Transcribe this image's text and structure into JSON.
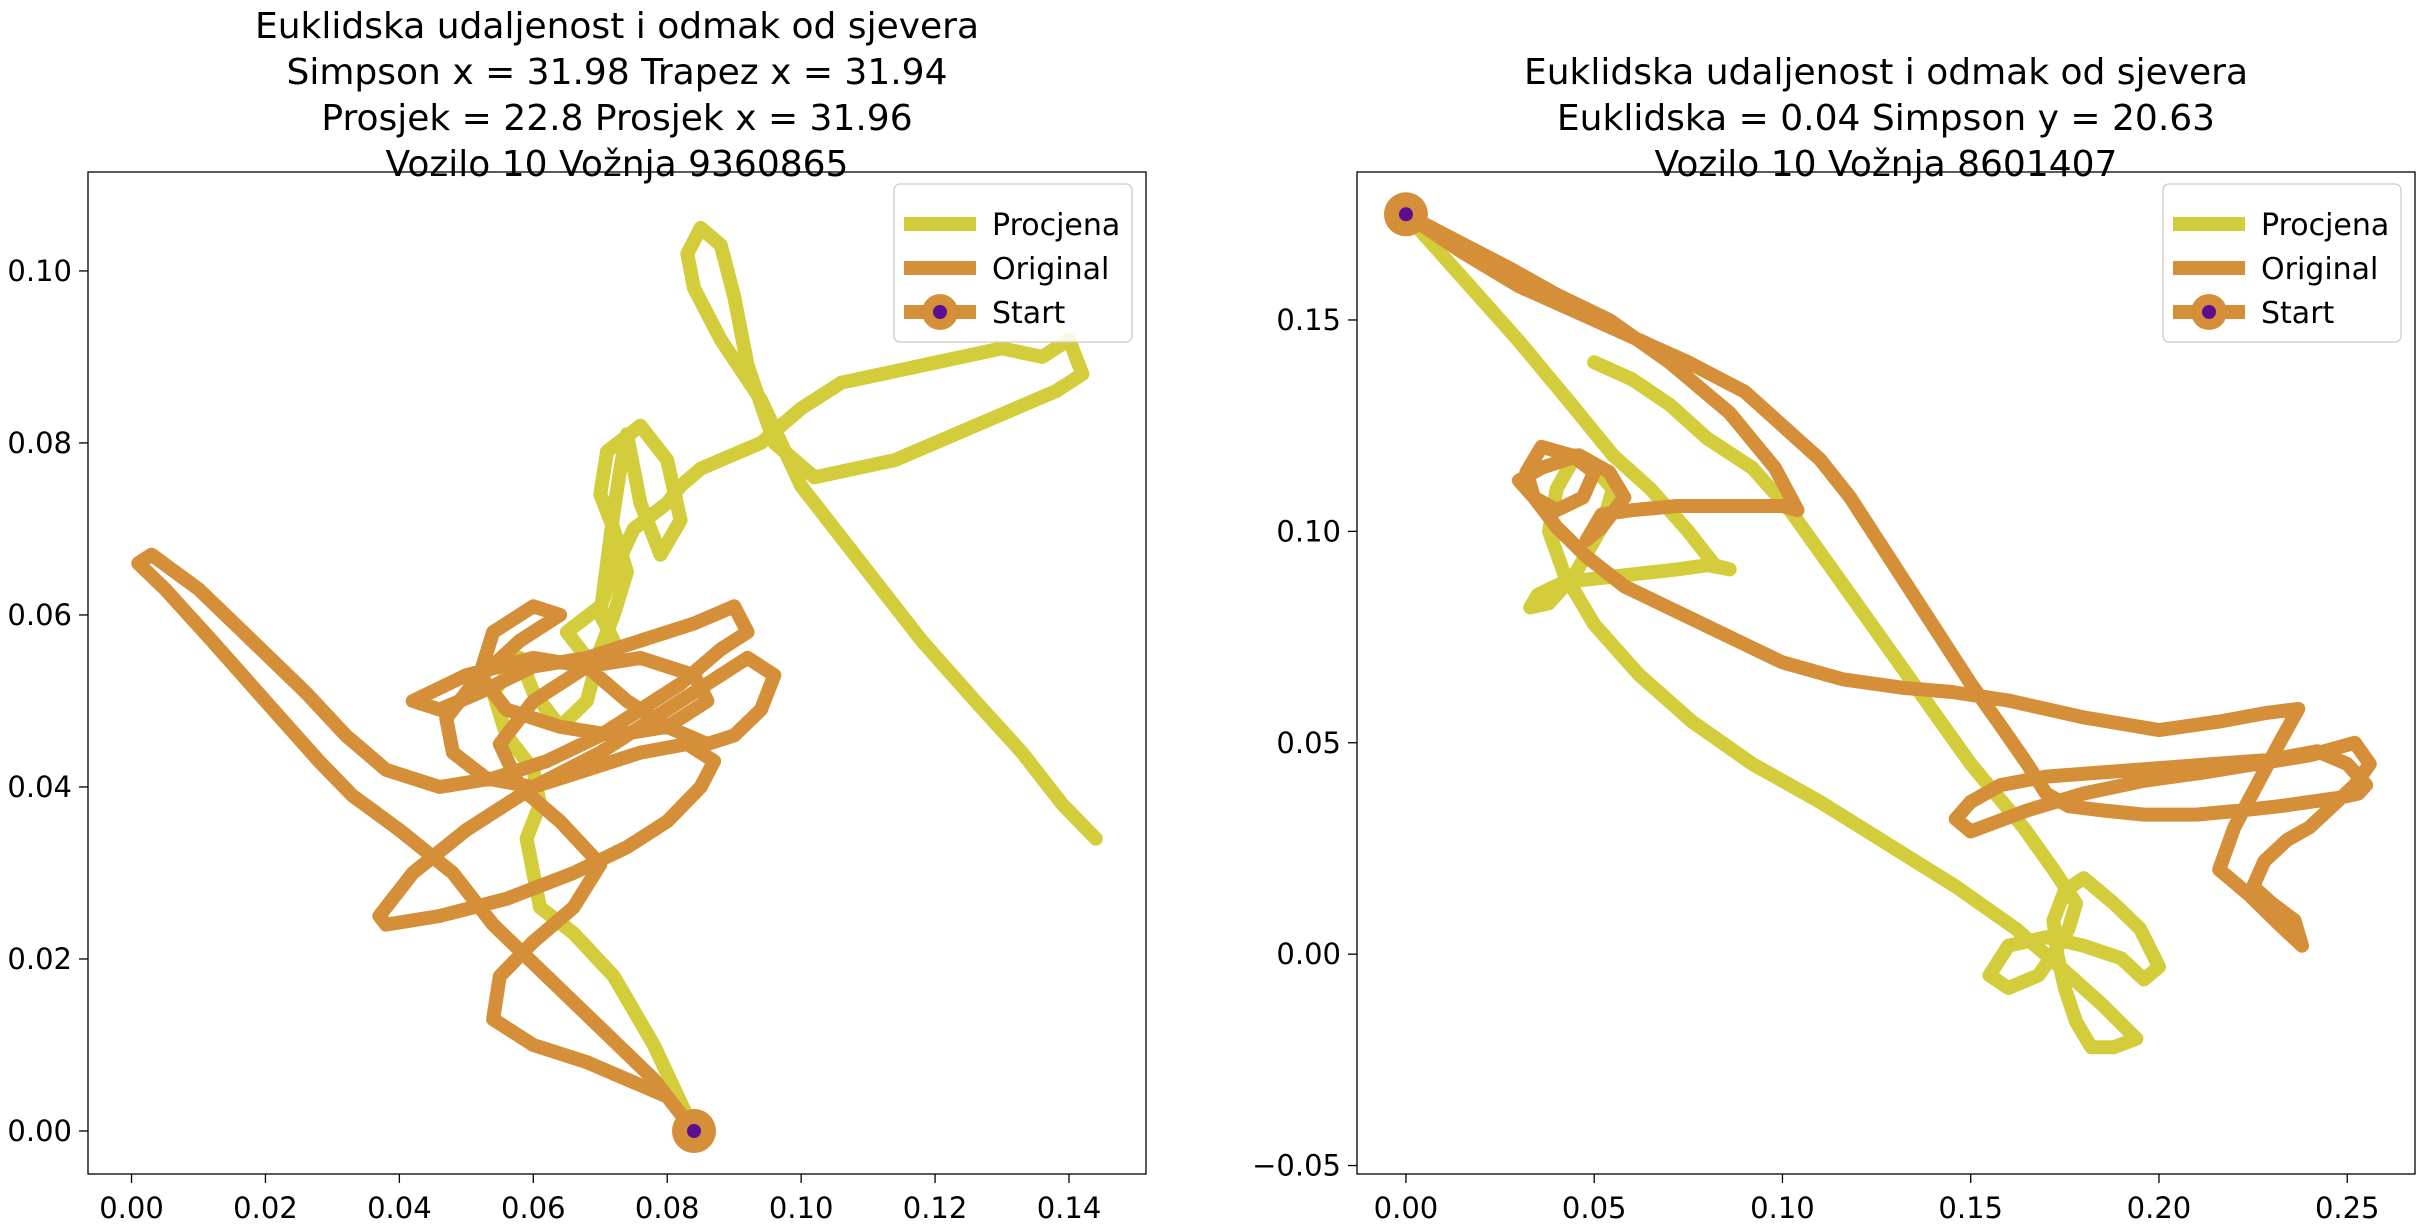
{
  "chart_data": [
    {
      "type": "line",
      "title_lines": [
        "Euklidska udaljenost i odmak od sjevera",
        "Simpson x = 31.98 Trapez x = 31.94",
        "Prosjek = 22.8 Prosjek x = 31.96",
        "Vozilo 10 Vožnja 9360865"
      ],
      "xlabel": "",
      "ylabel": "",
      "xlim": [
        -0.0065,
        0.1515
      ],
      "ylim": [
        -0.005,
        0.1115
      ],
      "xticks": [
        0.0,
        0.02,
        0.04,
        0.06,
        0.08,
        0.1,
        0.12,
        0.14
      ],
      "xtick_labels": [
        "0.00",
        "0.02",
        "0.04",
        "0.06",
        "0.08",
        "0.10",
        "0.12",
        "0.14"
      ],
      "yticks": [
        0.0,
        0.02,
        0.04,
        0.06,
        0.08,
        0.1
      ],
      "ytick_labels": [
        "0.00",
        "0.02",
        "0.04",
        "0.06",
        "0.08",
        "0.10"
      ],
      "grid": false,
      "legend_position": "top-right",
      "series": [
        {
          "name": "Procjena",
          "color": "#d4cd3b",
          "x": [
            0.084,
            0.078,
            0.072,
            0.066,
            0.061,
            0.059,
            0.061,
            0.06,
            0.056,
            0.054,
            0.058,
            0.06,
            0.064,
            0.068,
            0.07,
            0.072,
            0.074,
            0.072,
            0.07,
            0.071,
            0.076,
            0.08,
            0.082,
            0.079,
            0.076,
            0.074,
            0.073,
            0.072,
            0.071,
            0.07,
            0.072,
            0.069,
            0.065,
            0.07,
            0.072,
            0.075,
            0.08,
            0.082,
            0.085,
            0.088,
            0.094,
            0.1,
            0.106,
            0.112,
            0.118,
            0.124,
            0.13,
            0.136,
            0.14,
            0.142,
            0.138,
            0.132,
            0.126,
            0.12,
            0.114,
            0.108,
            0.102,
            0.096,
            0.092,
            0.09,
            0.088,
            0.085,
            0.083,
            0.084,
            0.088,
            0.094,
            0.1,
            0.11,
            0.118,
            0.126,
            0.133,
            0.139,
            0.144
          ],
          "y": [
            0.0,
            0.01,
            0.018,
            0.023,
            0.026,
            0.034,
            0.038,
            0.042,
            0.046,
            0.051,
            0.055,
            0.051,
            0.047,
            0.05,
            0.056,
            0.06,
            0.065,
            0.07,
            0.074,
            0.079,
            0.082,
            0.078,
            0.071,
            0.067,
            0.073,
            0.081,
            0.077,
            0.072,
            0.066,
            0.06,
            0.057,
            0.054,
            0.058,
            0.061,
            0.065,
            0.07,
            0.073,
            0.075,
            0.077,
            0.078,
            0.08,
            0.084,
            0.087,
            0.088,
            0.089,
            0.09,
            0.091,
            0.09,
            0.092,
            0.088,
            0.086,
            0.084,
            0.082,
            0.08,
            0.078,
            0.077,
            0.076,
            0.08,
            0.089,
            0.097,
            0.103,
            0.105,
            0.102,
            0.098,
            0.092,
            0.085,
            0.075,
            0.065,
            0.057,
            0.05,
            0.044,
            0.038,
            0.034
          ]
        },
        {
          "name": "Original",
          "color": "#d48f38",
          "x": [
            0.084,
            0.078,
            0.07,
            0.062,
            0.054,
            0.048,
            0.04,
            0.033,
            0.028,
            0.02,
            0.012,
            0.005,
            0.001,
            0.003,
            0.01,
            0.018,
            0.026,
            0.032,
            0.038,
            0.046,
            0.054,
            0.062,
            0.07,
            0.076,
            0.082,
            0.088,
            0.092,
            0.09,
            0.084,
            0.076,
            0.068,
            0.06,
            0.052,
            0.046,
            0.042,
            0.05,
            0.06,
            0.068,
            0.074,
            0.08,
            0.086,
            0.09,
            0.094,
            0.096,
            0.092,
            0.086,
            0.078,
            0.07,
            0.06,
            0.05,
            0.042,
            0.037,
            0.038,
            0.046,
            0.056,
            0.066,
            0.074,
            0.08,
            0.085,
            0.087,
            0.083,
            0.076,
            0.068,
            0.06,
            0.053,
            0.048,
            0.047,
            0.051,
            0.058,
            0.064,
            0.06,
            0.054,
            0.052,
            0.056,
            0.064,
            0.072,
            0.08,
            0.086,
            0.084,
            0.076,
            0.068,
            0.06,
            0.055,
            0.058,
            0.064,
            0.07,
            0.066,
            0.06,
            0.055,
            0.054,
            0.06,
            0.068,
            0.074,
            0.08,
            0.084
          ],
          "y": [
            0.0,
            0.006,
            0.012,
            0.018,
            0.024,
            0.03,
            0.035,
            0.039,
            0.043,
            0.05,
            0.057,
            0.063,
            0.066,
            0.067,
            0.063,
            0.057,
            0.051,
            0.046,
            0.042,
            0.04,
            0.041,
            0.043,
            0.046,
            0.049,
            0.052,
            0.056,
            0.058,
            0.061,
            0.059,
            0.057,
            0.055,
            0.054,
            0.051,
            0.049,
            0.05,
            0.053,
            0.055,
            0.054,
            0.05,
            0.047,
            0.045,
            0.046,
            0.049,
            0.053,
            0.055,
            0.052,
            0.048,
            0.044,
            0.04,
            0.035,
            0.03,
            0.025,
            0.024,
            0.025,
            0.027,
            0.03,
            0.033,
            0.036,
            0.04,
            0.043,
            0.045,
            0.044,
            0.042,
            0.04,
            0.041,
            0.044,
            0.048,
            0.052,
            0.057,
            0.06,
            0.061,
            0.058,
            0.053,
            0.049,
            0.047,
            0.046,
            0.047,
            0.05,
            0.053,
            0.055,
            0.054,
            0.05,
            0.045,
            0.04,
            0.036,
            0.031,
            0.026,
            0.022,
            0.018,
            0.013,
            0.01,
            0.008,
            0.006,
            0.004,
            0.0
          ]
        }
      ],
      "start": {
        "label": "Start",
        "x": 0.084,
        "y": 0.0,
        "outer_color": "#d48f38",
        "inner_color": "#5b0e8f"
      }
    },
    {
      "type": "line",
      "title_lines": [
        "Euklidska udaljenost i odmak od sjevera",
        "Euklidska = 0.04 Simpson y = 20.63",
        "Vozilo 10 Vožnja 8601407"
      ],
      "xlabel": "",
      "ylabel": "",
      "xlim": [
        -0.013,
        0.268
      ],
      "ylim": [
        -0.052,
        0.185
      ],
      "xticks": [
        0.0,
        0.05,
        0.1,
        0.15,
        0.2,
        0.25
      ],
      "xtick_labels": [
        "0.00",
        "0.05",
        "0.10",
        "0.15",
        "0.20",
        "0.25"
      ],
      "yticks": [
        -0.05,
        0.0,
        0.05,
        0.1,
        0.15
      ],
      "ytick_labels": [
        "−0.05",
        "0.00",
        "0.05",
        "0.10",
        "0.15"
      ],
      "grid": false,
      "legend_position": "top-right",
      "series": [
        {
          "name": "Procjena",
          "color": "#d4cd3b",
          "x": [
            0.0,
            0.015,
            0.03,
            0.044,
            0.055,
            0.065,
            0.075,
            0.082,
            0.086,
            0.08,
            0.072,
            0.062,
            0.052,
            0.042,
            0.035,
            0.033,
            0.038,
            0.045,
            0.052,
            0.055,
            0.05,
            0.045,
            0.04,
            0.038,
            0.042,
            0.05,
            0.062,
            0.076,
            0.092,
            0.11,
            0.128,
            0.146,
            0.162,
            0.175,
            0.185,
            0.194,
            0.188,
            0.182,
            0.178,
            0.175,
            0.173,
            0.172,
            0.175,
            0.18,
            0.188,
            0.195,
            0.2,
            0.196,
            0.19,
            0.18,
            0.17,
            0.16,
            0.155,
            0.16,
            0.168,
            0.172,
            0.176,
            0.178,
            0.172,
            0.164,
            0.15,
            0.138,
            0.126,
            0.114,
            0.102,
            0.092,
            0.08,
            0.07,
            0.06,
            0.05
          ],
          "y": [
            0.175,
            0.16,
            0.145,
            0.13,
            0.118,
            0.11,
            0.1,
            0.092,
            0.091,
            0.092,
            0.091,
            0.09,
            0.089,
            0.088,
            0.085,
            0.082,
            0.083,
            0.09,
            0.101,
            0.11,
            0.115,
            0.118,
            0.11,
            0.1,
            0.09,
            0.078,
            0.066,
            0.055,
            0.045,
            0.036,
            0.026,
            0.016,
            0.006,
            -0.004,
            -0.012,
            -0.02,
            -0.022,
            -0.022,
            -0.016,
            -0.008,
            0.0,
            0.008,
            0.015,
            0.018,
            0.012,
            0.006,
            -0.003,
            -0.006,
            -0.001,
            0.002,
            0.004,
            0.002,
            -0.005,
            -0.008,
            -0.005,
            0.0,
            0.006,
            0.012,
            0.02,
            0.03,
            0.045,
            0.06,
            0.075,
            0.09,
            0.105,
            0.115,
            0.122,
            0.13,
            0.136,
            0.14
          ]
        },
        {
          "name": "Original",
          "color": "#d48f38",
          "x": [
            0.0,
            0.015,
            0.03,
            0.045,
            0.06,
            0.075,
            0.09,
            0.1,
            0.11,
            0.118,
            0.126,
            0.134,
            0.142,
            0.15,
            0.158,
            0.165,
            0.17,
            0.176,
            0.185,
            0.196,
            0.21,
            0.222,
            0.232,
            0.24,
            0.248,
            0.253,
            0.255,
            0.25,
            0.242,
            0.23,
            0.215,
            0.2,
            0.185,
            0.17,
            0.158,
            0.15,
            0.146,
            0.15,
            0.165,
            0.18,
            0.196,
            0.212,
            0.226,
            0.24,
            0.252,
            0.256,
            0.252,
            0.246,
            0.24,
            0.234,
            0.228,
            0.225,
            0.23,
            0.236,
            0.238,
            0.232,
            0.224,
            0.216,
            0.22,
            0.226,
            0.232,
            0.237,
            0.228,
            0.216,
            0.2,
            0.18,
            0.16,
            0.145,
            0.132,
            0.116,
            0.1,
            0.086,
            0.072,
            0.058,
            0.048,
            0.04,
            0.034,
            0.032,
            0.036,
            0.044,
            0.05,
            0.047,
            0.04,
            0.034,
            0.03,
            0.036,
            0.046,
            0.054,
            0.058,
            0.052,
            0.048,
            0.052,
            0.06,
            0.072,
            0.086,
            0.1,
            0.104,
            0.098,
            0.086,
            0.07,
            0.054,
            0.04,
            0.028,
            0.015,
            0.0
          ],
          "y": [
            0.175,
            0.166,
            0.158,
            0.152,
            0.146,
            0.14,
            0.133,
            0.125,
            0.117,
            0.108,
            0.097,
            0.086,
            0.075,
            0.064,
            0.054,
            0.045,
            0.038,
            0.035,
            0.034,
            0.033,
            0.033,
            0.034,
            0.035,
            0.036,
            0.037,
            0.038,
            0.04,
            0.045,
            0.048,
            0.046,
            0.045,
            0.044,
            0.043,
            0.042,
            0.04,
            0.036,
            0.032,
            0.029,
            0.034,
            0.038,
            0.041,
            0.043,
            0.045,
            0.047,
            0.05,
            0.045,
            0.04,
            0.035,
            0.03,
            0.027,
            0.022,
            0.016,
            0.012,
            0.008,
            0.002,
            0.007,
            0.014,
            0.02,
            0.03,
            0.04,
            0.05,
            0.058,
            0.057,
            0.055,
            0.053,
            0.056,
            0.06,
            0.062,
            0.063,
            0.065,
            0.069,
            0.075,
            0.081,
            0.087,
            0.094,
            0.101,
            0.108,
            0.114,
            0.12,
            0.118,
            0.114,
            0.108,
            0.105,
            0.108,
            0.112,
            0.115,
            0.118,
            0.114,
            0.108,
            0.101,
            0.098,
            0.104,
            0.105,
            0.106,
            0.106,
            0.106,
            0.105,
            0.115,
            0.128,
            0.14,
            0.15,
            0.156,
            0.162,
            0.168,
            0.175
          ]
        }
      ],
      "start": {
        "label": "Start",
        "x": 0.0,
        "y": 0.175,
        "outer_color": "#d48f38",
        "inner_color": "#5b0e8f"
      }
    }
  ]
}
